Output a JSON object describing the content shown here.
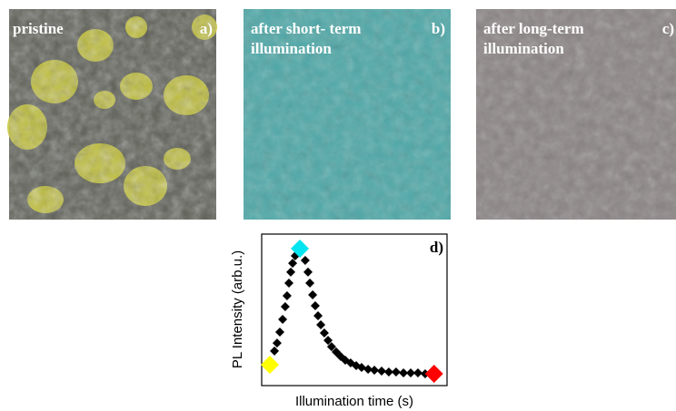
{
  "panels": [
    {
      "title": [
        "pristine"
      ],
      "label": "a)"
    },
    {
      "title": [
        "after short- term",
        "illumination"
      ],
      "label": "b)"
    },
    {
      "title": [
        "after long-term",
        "illumination"
      ],
      "label": "c)"
    }
  ],
  "chart_data": {
    "type": "scatter",
    "label": "d)",
    "x_label": "Illumination time (s)",
    "y_label": "PL Intensity (arb.u.)",
    "xlim": [
      0,
      100
    ],
    "ylim": [
      0,
      100
    ],
    "series": [
      {
        "color": "#000000",
        "x": [
          6.9,
          8.3,
          9.8,
          11.3,
          12.7,
          13.7,
          14.7,
          15.7,
          16.7,
          18.1,
          23.5,
          25.0,
          26.0,
          27.5,
          28.9,
          30.4,
          31.9,
          33.8,
          35.8,
          37.7,
          40.2,
          42.6,
          45.1,
          48.0,
          51.0,
          53.9,
          57.4,
          60.8,
          64.7,
          68.6,
          72.5,
          76.5,
          80.4,
          84.3,
          88.2
        ],
        "values": [
          22.8,
          28.1,
          35.3,
          43.7,
          52.1,
          59.3,
          67.7,
          74.9,
          80.8,
          85.6,
          82.6,
          74.9,
          67.7,
          59.9,
          52.7,
          46.1,
          40.1,
          34.7,
          29.9,
          25.7,
          22.2,
          19.2,
          16.8,
          15.0,
          13.2,
          12.0,
          10.8,
          10.2,
          9.6,
          9.0,
          9.0,
          8.4,
          8.4,
          8.4,
          7.8
        ]
      },
      {
        "color": "#ffff00",
        "x": [
          4.4
        ],
        "values": [
          13.8
        ]
      },
      {
        "color": "#00e5f0",
        "x": [
          20.6
        ],
        "values": [
          90.4
        ]
      },
      {
        "color": "#ff0000",
        "x": [
          93.0
        ],
        "values": [
          7.8
        ]
      }
    ]
  }
}
